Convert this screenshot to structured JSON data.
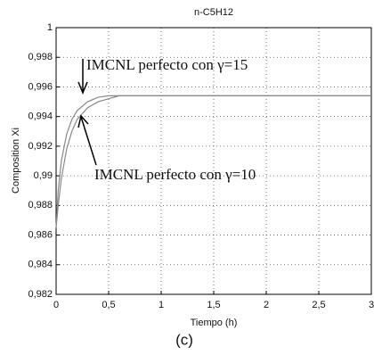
{
  "chart_data": {
    "type": "line",
    "title": "n-C5H12",
    "x_label": "Tiempo (h)",
    "y_label": "Composition Xi",
    "caption": "(c)",
    "x": [
      0,
      0.02,
      0.05,
      0.1,
      0.15,
      0.2,
      0.3,
      0.4,
      0.5,
      0.6,
      3
    ],
    "series": [
      {
        "color": "#888888",
        "values": [
          0.9865,
          0.989,
          0.991,
          0.9928,
          0.9938,
          0.9944,
          0.995,
          0.9953,
          0.9954,
          0.9954,
          0.9954
        ]
      },
      {
        "color": "#888888",
        "values": [
          0.9865,
          0.988,
          0.9898,
          0.9918,
          0.993,
          0.9938,
          0.9946,
          0.995,
          0.9952,
          0.9954,
          0.9954
        ]
      }
    ],
    "annotations": [
      "IMCNL perfecto con γ=15",
      "IMCNL perfecto con γ=10"
    ],
    "xlim": [
      0,
      3
    ],
    "ylim": [
      0.982,
      1
    ],
    "xticks": [
      0,
      {
        "value": 0.5,
        "label": "0,5"
      },
      1,
      {
        "value": 1.5,
        "label": "1,5"
      },
      2,
      {
        "value": 2.5,
        "label": "2,5"
      },
      3
    ],
    "yticks": [
      {
        "value": 0.982,
        "label": "0,982"
      },
      {
        "value": 0.984,
        "label": "0,984"
      },
      {
        "value": 0.986,
        "label": "0,986"
      },
      {
        "value": 0.988,
        "label": "0,988"
      },
      {
        "value": 0.99,
        "label": "0,99"
      },
      {
        "value": 0.992,
        "label": "0,992"
      },
      {
        "value": 0.994,
        "label": "0,994"
      },
      {
        "value": 0.996,
        "label": "0,996"
      },
      {
        "value": 0.998,
        "label": "0,998"
      },
      1
    ],
    "grid": true
  }
}
